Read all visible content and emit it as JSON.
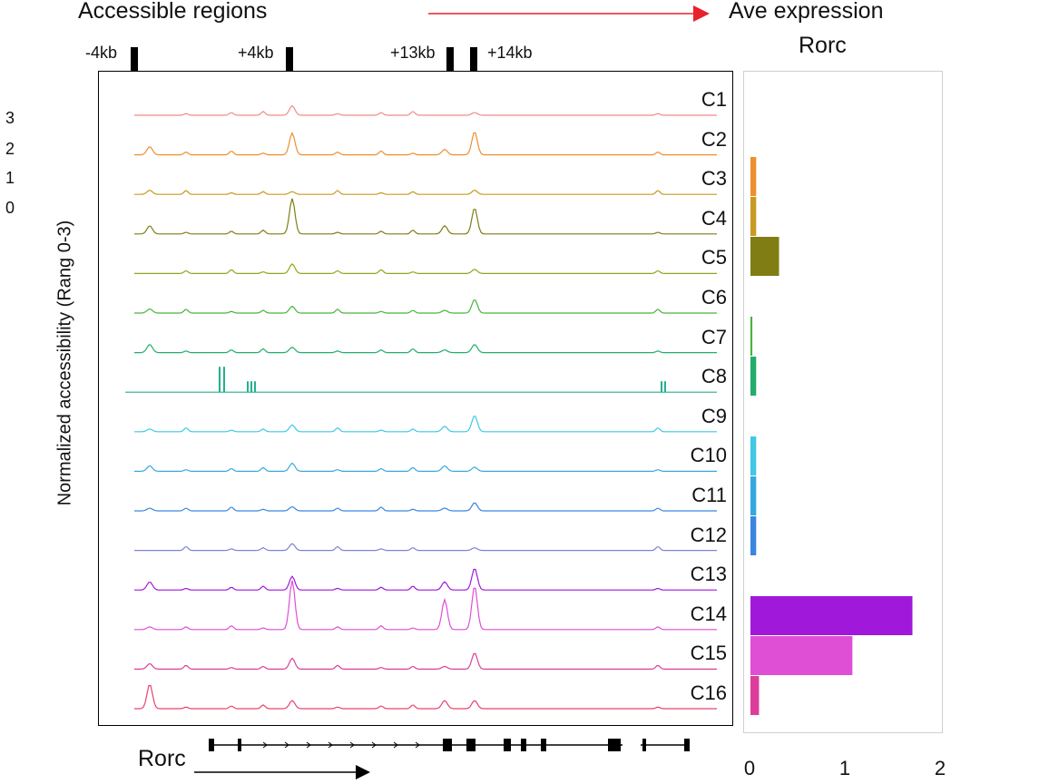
{
  "header": {
    "left_title": "Accessible regions",
    "right_title": "Ave expression",
    "gene_title": "Rorc"
  },
  "regions": [
    "-4kb",
    "+4kb",
    "+13kb",
    "+14kb"
  ],
  "y_scale_ticks": [
    "3",
    "2",
    "1",
    "0"
  ],
  "y_axis_label": "Normalized accessibility (Rang 0-3)",
  "gene_track": {
    "name": "Rorc"
  },
  "colors": {
    "arrow": "#e8212a",
    "C1": "#f08b8b",
    "C2": "#ee8f2e",
    "C3": "#c99a22",
    "C4": "#7f7d14",
    "C5": "#8aa81f",
    "C6": "#48b33c",
    "C7": "#22ad6a",
    "C8": "#22b08e",
    "C9": "#3fc8e6",
    "C10": "#35a9de",
    "C11": "#3a86de",
    "C12": "#7f84d6",
    "C13": "#a019db",
    "C14": "#de4fd6",
    "C15": "#dd3d9a",
    "C16": "#e8436e"
  },
  "chart_data": [
    {
      "type": "line",
      "title": "Accessible regions",
      "ylabel": "Normalized accessibility (Rang 0-3)",
      "ylim": [
        0,
        3
      ],
      "x_landmarks": [
        "-4kb",
        "+4kb",
        "+13kb",
        "+14kb"
      ],
      "series": [
        {
          "name": "C1",
          "peaks": {
            "-4kb": 0.0,
            "+4kb": 0.35,
            "+13kb": 0.0,
            "+14kb": 0.1
          }
        },
        {
          "name": "C2",
          "peaks": {
            "-4kb": 0.3,
            "+4kb": 0.8,
            "+13kb": 0.2,
            "+14kb": 0.85
          }
        },
        {
          "name": "C3",
          "peaks": {
            "-4kb": 0.15,
            "+4kb": 0.1,
            "+13kb": 0.0,
            "+14kb": 0.15
          }
        },
        {
          "name": "C4",
          "peaks": {
            "-4kb": 0.3,
            "+4kb": 1.3,
            "+13kb": 0.3,
            "+14kb": 0.95
          }
        },
        {
          "name": "C5",
          "peaks": {
            "-4kb": 0.0,
            "+4kb": 0.35,
            "+13kb": 0.0,
            "+14kb": 0.15
          }
        },
        {
          "name": "C6",
          "peaks": {
            "-4kb": 0.15,
            "+4kb": 0.25,
            "+13kb": 0.1,
            "+14kb": 0.5
          }
        },
        {
          "name": "C7",
          "peaks": {
            "-4kb": 0.3,
            "+4kb": 0.2,
            "+13kb": 0.1,
            "+14kb": 0.3
          }
        },
        {
          "name": "C8",
          "peaks": {
            "-4kb": 0.0,
            "+4kb": 0.0,
            "+13kb": 0.0,
            "+14kb": 0.0
          }
        },
        {
          "name": "C9",
          "peaks": {
            "-4kb": 0.1,
            "+4kb": 0.25,
            "+13kb": 0.2,
            "+14kb": 0.6
          }
        },
        {
          "name": "C10",
          "peaks": {
            "-4kb": 0.2,
            "+4kb": 0.3,
            "+13kb": 0.2,
            "+14kb": 0.15
          }
        },
        {
          "name": "C11",
          "peaks": {
            "-4kb": 0.1,
            "+4kb": 0.15,
            "+13kb": 0.1,
            "+14kb": 0.3
          }
        },
        {
          "name": "C12",
          "peaks": {
            "-4kb": 0.0,
            "+4kb": 0.25,
            "+13kb": 0.0,
            "+14kb": 0.1
          }
        },
        {
          "name": "C13",
          "peaks": {
            "-4kb": 0.3,
            "+4kb": 0.5,
            "+13kb": 0.3,
            "+14kb": 0.8
          }
        },
        {
          "name": "C14",
          "peaks": {
            "-4kb": 0.1,
            "+4kb": 1.8,
            "+13kb": 1.1,
            "+14kb": 1.6
          }
        },
        {
          "name": "C15",
          "peaks": {
            "-4kb": 0.2,
            "+4kb": 0.4,
            "+13kb": 0.1,
            "+14kb": 0.6
          }
        },
        {
          "name": "C16",
          "peaks": {
            "-4kb": 0.9,
            "+4kb": 0.3,
            "+13kb": 0.3,
            "+14kb": 0.3
          }
        }
      ]
    },
    {
      "type": "bar",
      "orientation": "horizontal",
      "title": "Ave expression",
      "subtitle": "Rorc",
      "categories": [
        "C1",
        "C2",
        "C3",
        "C4",
        "C5",
        "C6",
        "C7",
        "C8",
        "C9",
        "C10",
        "C11",
        "C12",
        "C13",
        "C14",
        "C15",
        "C16"
      ],
      "values": [
        0,
        0.06,
        0.06,
        0.3,
        0,
        0.02,
        0.06,
        0,
        0.06,
        0.06,
        0.06,
        0,
        1.7,
        1.07,
        0.09,
        0
      ],
      "xlim": [
        0,
        2
      ],
      "xticks": [
        "0",
        "1",
        "2"
      ]
    }
  ]
}
